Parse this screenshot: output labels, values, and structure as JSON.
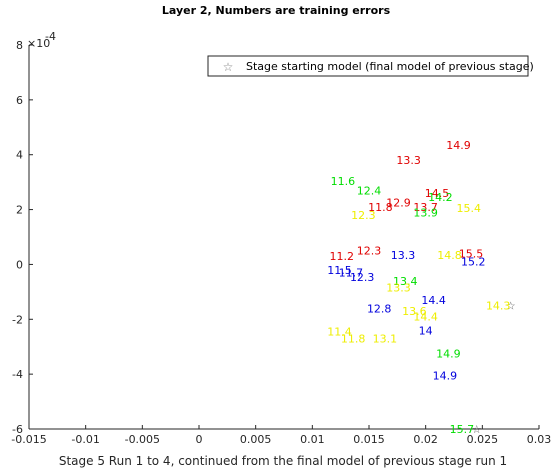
{
  "chart_data": {
    "type": "scatter",
    "title": "Layer 2, Numbers are training errors",
    "xlabel": "Stage 5 Run 1 to 4, continued from the final model of previous stage run 1",
    "ylabel": "",
    "xlim": [
      -0.015,
      0.03
    ],
    "ylim": [
      -6,
      8
    ],
    "y_exponent_label": "×10^-4",
    "y_exponent_base": "×10",
    "y_exponent_power": "-4",
    "x_ticks": [
      -0.015,
      -0.01,
      -0.005,
      0,
      0.005,
      0.01,
      0.015,
      0.02,
      0.025,
      0.03
    ],
    "x_tick_labels": [
      "-0.015",
      "-0.01",
      "-0.005",
      "0",
      "0.005",
      "0.01",
      "0.015",
      "0.02",
      "0.025",
      "0.03"
    ],
    "y_ticks": [
      -6,
      -4,
      -2,
      0,
      2,
      4,
      6,
      8
    ],
    "y_tick_labels": [
      "-6",
      "-4",
      "-2",
      "0",
      "2",
      "4",
      "6",
      "8"
    ],
    "grid": false,
    "legend": {
      "position": "top-right",
      "entries": [
        {
          "marker": "star",
          "label": "Stage starting model (final model of previous stage)"
        }
      ]
    },
    "series": [
      {
        "color": "#e00000",
        "points": [
          {
            "x": 0.0229,
            "y": 4.35,
            "label": "14.9"
          },
          {
            "x": 0.0185,
            "y": 3.8,
            "label": "13.3"
          },
          {
            "x": 0.021,
            "y": 2.6,
            "label": "14.5"
          },
          {
            "x": 0.016,
            "y": 2.1,
            "label": "11.8"
          },
          {
            "x": 0.0176,
            "y": 2.25,
            "label": "12.9"
          },
          {
            "x": 0.02,
            "y": 2.1,
            "label": "13.7"
          },
          {
            "x": 0.0126,
            "y": 0.3,
            "label": "11.2"
          },
          {
            "x": 0.015,
            "y": 0.5,
            "label": "12.3"
          },
          {
            "x": 0.024,
            "y": 0.4,
            "label": "15.5"
          }
        ]
      },
      {
        "color": "#00dd00",
        "points": [
          {
            "x": 0.0127,
            "y": 3.05,
            "label": "11.6"
          },
          {
            "x": 0.015,
            "y": 2.7,
            "label": "12.4"
          },
          {
            "x": 0.02,
            "y": 1.9,
            "label": "13.9"
          },
          {
            "x": 0.0213,
            "y": 2.45,
            "label": "14.2"
          },
          {
            "x": 0.0182,
            "y": -0.6,
            "label": "13.4"
          },
          {
            "x": 0.022,
            "y": -3.25,
            "label": "14.9"
          },
          {
            "x": 0.0232,
            "y": -6.0,
            "label": "15.7"
          }
        ]
      },
      {
        "color": "#0000dd",
        "points": [
          {
            "x": 0.018,
            "y": 0.35,
            "label": "13.3"
          },
          {
            "x": 0.0242,
            "y": 0.1,
            "label": "15.2"
          },
          {
            "x": 0.0124,
            "y": -0.2,
            "label": "11.5"
          },
          {
            "x": 0.0134,
            "y": -0.3,
            "label": "11.7"
          },
          {
            "x": 0.0144,
            "y": -0.45,
            "label": "12.3"
          },
          {
            "x": 0.0207,
            "y": -1.3,
            "label": "14.4"
          },
          {
            "x": 0.0159,
            "y": -1.6,
            "label": "12.8"
          },
          {
            "x": 0.02,
            "y": -2.4,
            "label": "14"
          },
          {
            "x": 0.0217,
            "y": -4.05,
            "label": "14.9"
          }
        ]
      },
      {
        "color": "#eeee00",
        "points": [
          {
            "x": 0.0238,
            "y": 2.05,
            "label": "15.4"
          },
          {
            "x": 0.0145,
            "y": 1.8,
            "label": "12.3"
          },
          {
            "x": 0.0221,
            "y": 0.35,
            "label": "14.8"
          },
          {
            "x": 0.0176,
            "y": -0.85,
            "label": "13.3"
          },
          {
            "x": 0.019,
            "y": -1.7,
            "label": "13.6"
          },
          {
            "x": 0.02,
            "y": -1.9,
            "label": "14.4"
          },
          {
            "x": 0.0264,
            "y": -1.5,
            "label": "14.3"
          },
          {
            "x": 0.0124,
            "y": -2.45,
            "label": "11.4"
          },
          {
            "x": 0.0136,
            "y": -2.7,
            "label": "11.8"
          },
          {
            "x": 0.0164,
            "y": -2.7,
            "label": "13.1"
          }
        ]
      }
    ],
    "star_markers": [
      {
        "x": 0.0275,
        "y": -1.5
      },
      {
        "x": 0.0245,
        "y": -6.0
      }
    ]
  }
}
